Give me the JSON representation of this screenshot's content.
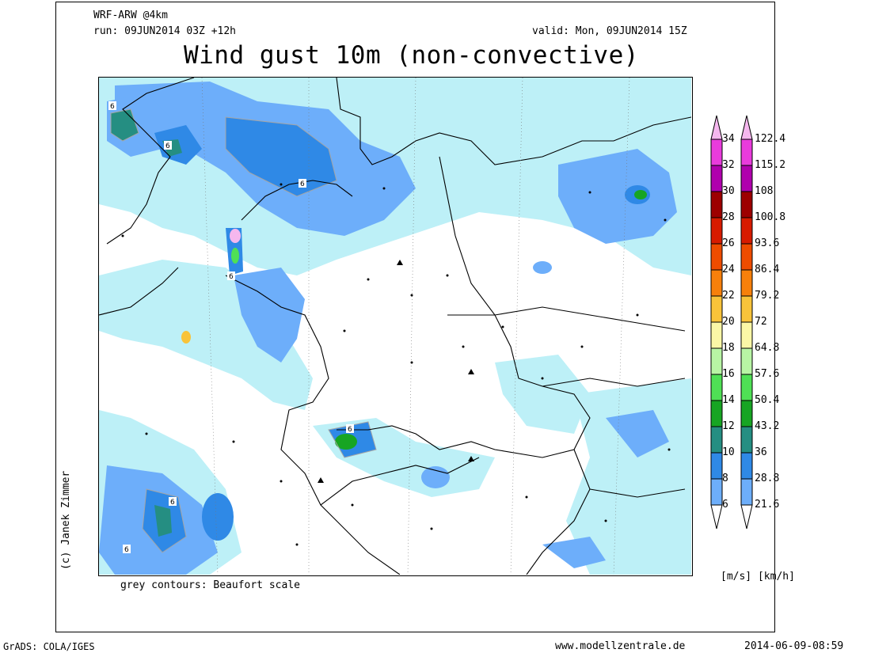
{
  "header": {
    "model": "WRF-ARW @4km",
    "run": "run: 09JUN2014 03Z +12h",
    "valid": "valid: Mon, 09JUN2014 15Z",
    "title": "Wind gust 10m (non-convective)"
  },
  "map": {
    "contour_note": "grey contours: Beaufort scale",
    "contour_labels": [
      "6",
      "6",
      "6",
      "6",
      "6",
      "6",
      "6"
    ]
  },
  "colorbar": {
    "ms_values": [
      "34",
      "32",
      "30",
      "28",
      "26",
      "24",
      "22",
      "20",
      "18",
      "16",
      "14",
      "12",
      "10",
      "8",
      "6"
    ],
    "kmh_values": [
      "122.4",
      "115.2",
      "108",
      "100.8",
      "93.6",
      "86.4",
      "79.2",
      "72",
      "64.8",
      "57.6",
      "50.4",
      "43.2",
      "36",
      "28.8",
      "21.6"
    ],
    "colors": [
      "#f5b7ee",
      "#e93bdc",
      "#b000ad",
      "#9d0000",
      "#d71b00",
      "#ee4c00",
      "#f7800b",
      "#f8c33a",
      "#fbf7a6",
      "#b8f5a4",
      "#4fe055",
      "#17a523",
      "#258e82",
      "#2f89e6",
      "#6daefa",
      "#bdf0f7"
    ],
    "units": "[m/s] [km/h]"
  },
  "footer": {
    "left": "GrADS: COLA/IGES",
    "center": "www.modellzentrale.de",
    "right": "2014-06-09-08:59",
    "credit": "(c) Janek Zimmer"
  }
}
